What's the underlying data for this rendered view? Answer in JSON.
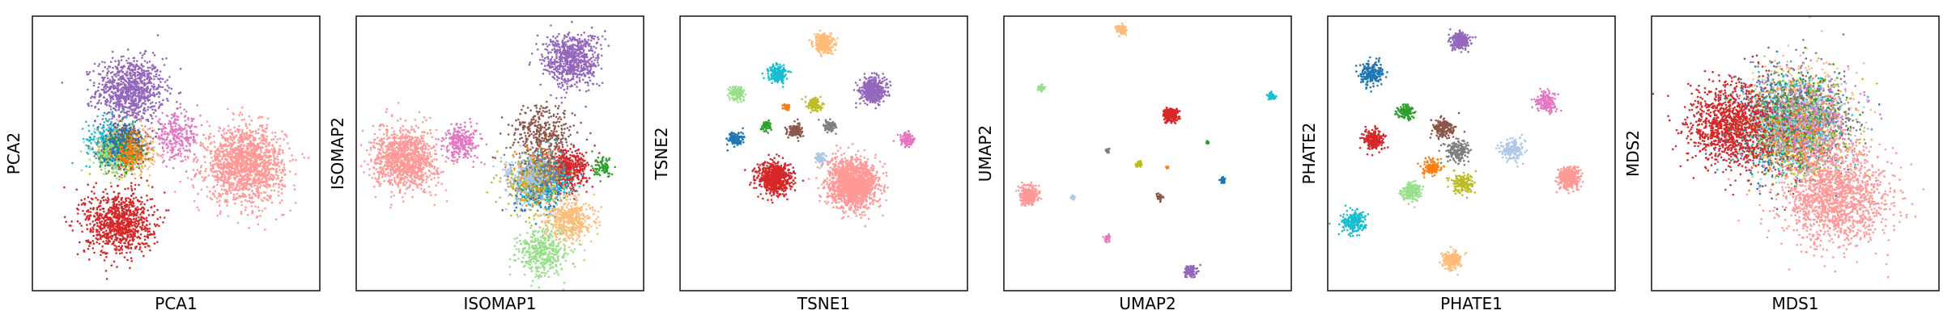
{
  "palette": {
    "blue": "#1f77b4",
    "orange": "#ff7f0e",
    "green": "#2ca02c",
    "red": "#d62728",
    "purple": "#9467bd",
    "brown": "#8c564b",
    "pink": "#e377c2",
    "gray": "#7f7f7f",
    "olive": "#bcbd22",
    "cyan": "#17becf",
    "lightblue": "#aec7e8",
    "lightorange": "#ffbb78",
    "lightgreen": "#98df8a",
    "salmon": "#ff9896"
  },
  "chart_data": [
    {
      "type": "scatter",
      "xlabel": "PCA1",
      "ylabel": "PCA2",
      "ticks": "none",
      "clusters": [
        {
          "color": "purple",
          "x": 0.34,
          "y": 0.73,
          "spread": 0.13,
          "count": 900
        },
        {
          "color": "lightblue",
          "x": 0.32,
          "y": 0.53,
          "spread": 0.1,
          "count": 260
        },
        {
          "color": "cyan",
          "x": 0.27,
          "y": 0.55,
          "spread": 0.09,
          "count": 220
        },
        {
          "color": "olive",
          "x": 0.32,
          "y": 0.5,
          "spread": 0.09,
          "count": 220
        },
        {
          "color": "lightorange",
          "x": 0.35,
          "y": 0.52,
          "spread": 0.09,
          "count": 220
        },
        {
          "color": "gray",
          "x": 0.3,
          "y": 0.52,
          "spread": 0.08,
          "count": 180
        },
        {
          "color": "brown",
          "x": 0.33,
          "y": 0.54,
          "spread": 0.08,
          "count": 180
        },
        {
          "color": "green",
          "x": 0.31,
          "y": 0.51,
          "spread": 0.08,
          "count": 150
        },
        {
          "color": "lightgreen",
          "x": 0.28,
          "y": 0.5,
          "spread": 0.08,
          "count": 150
        },
        {
          "color": "blue",
          "x": 0.3,
          "y": 0.53,
          "spread": 0.08,
          "count": 150
        },
        {
          "color": "orange",
          "x": 0.34,
          "y": 0.5,
          "spread": 0.07,
          "count": 120
        },
        {
          "color": "pink",
          "x": 0.5,
          "y": 0.56,
          "spread": 0.09,
          "count": 280
        },
        {
          "color": "salmon",
          "x": 0.74,
          "y": 0.46,
          "spread": 0.15,
          "count": 1500
        },
        {
          "color": "red",
          "x": 0.3,
          "y": 0.25,
          "spread": 0.13,
          "count": 900
        }
      ]
    },
    {
      "type": "scatter",
      "xlabel": "ISOMAP1",
      "ylabel": "ISOMAP2",
      "ticks": "none",
      "clusters": [
        {
          "color": "purple",
          "x": 0.75,
          "y": 0.84,
          "spread": 0.11,
          "count": 700
        },
        {
          "color": "salmon",
          "x": 0.17,
          "y": 0.48,
          "spread": 0.12,
          "count": 1100
        },
        {
          "color": "pink",
          "x": 0.37,
          "y": 0.54,
          "spread": 0.07,
          "count": 250
        },
        {
          "color": "brown",
          "x": 0.65,
          "y": 0.57,
          "spread": 0.12,
          "count": 350
        },
        {
          "color": "red",
          "x": 0.73,
          "y": 0.44,
          "spread": 0.08,
          "count": 500
        },
        {
          "color": "green",
          "x": 0.86,
          "y": 0.45,
          "spread": 0.04,
          "count": 80
        },
        {
          "color": "blue",
          "x": 0.64,
          "y": 0.38,
          "spread": 0.1,
          "count": 280
        },
        {
          "color": "cyan",
          "x": 0.66,
          "y": 0.4,
          "spread": 0.1,
          "count": 220
        },
        {
          "color": "orange",
          "x": 0.62,
          "y": 0.42,
          "spread": 0.1,
          "count": 200
        },
        {
          "color": "olive",
          "x": 0.61,
          "y": 0.39,
          "spread": 0.11,
          "count": 200
        },
        {
          "color": "gray",
          "x": 0.65,
          "y": 0.43,
          "spread": 0.1,
          "count": 200
        },
        {
          "color": "lightblue",
          "x": 0.6,
          "y": 0.41,
          "spread": 0.11,
          "count": 200
        },
        {
          "color": "lightorange",
          "x": 0.74,
          "y": 0.26,
          "spread": 0.09,
          "count": 450
        },
        {
          "color": "lightgreen",
          "x": 0.65,
          "y": 0.14,
          "spread": 0.1,
          "count": 400
        }
      ]
    },
    {
      "type": "scatter",
      "xlabel": "TSNE1",
      "ylabel": "TSNE2",
      "ticks": "none",
      "clusters": [
        {
          "color": "lightorange",
          "x": 0.5,
          "y": 0.9,
          "spread": 0.038,
          "count": 300
        },
        {
          "color": "cyan",
          "x": 0.34,
          "y": 0.79,
          "spread": 0.034,
          "count": 200
        },
        {
          "color": "purple",
          "x": 0.67,
          "y": 0.73,
          "spread": 0.05,
          "count": 450
        },
        {
          "color": "lightgreen",
          "x": 0.2,
          "y": 0.72,
          "spread": 0.028,
          "count": 150
        },
        {
          "color": "orange",
          "x": 0.37,
          "y": 0.67,
          "spread": 0.012,
          "count": 40
        },
        {
          "color": "olive",
          "x": 0.47,
          "y": 0.68,
          "spread": 0.028,
          "count": 120
        },
        {
          "color": "green",
          "x": 0.3,
          "y": 0.6,
          "spread": 0.018,
          "count": 60
        },
        {
          "color": "brown",
          "x": 0.4,
          "y": 0.58,
          "spread": 0.03,
          "count": 130
        },
        {
          "color": "gray",
          "x": 0.52,
          "y": 0.6,
          "spread": 0.024,
          "count": 90
        },
        {
          "color": "blue",
          "x": 0.19,
          "y": 0.55,
          "spread": 0.03,
          "count": 130
        },
        {
          "color": "pink",
          "x": 0.79,
          "y": 0.55,
          "spread": 0.028,
          "count": 130
        },
        {
          "color": "lightblue",
          "x": 0.49,
          "y": 0.48,
          "spread": 0.022,
          "count": 80
        },
        {
          "color": "red",
          "x": 0.33,
          "y": 0.41,
          "spread": 0.065,
          "count": 700
        },
        {
          "color": "salmon",
          "x": 0.6,
          "y": 0.39,
          "spread": 0.095,
          "count": 1500
        }
      ]
    },
    {
      "type": "scatter",
      "xlabel": "UMAP2",
      "ylabel": "UMAP2",
      "ticks": "none",
      "clusters": [
        {
          "color": "lightorange",
          "x": 0.41,
          "y": 0.95,
          "spread": 0.02,
          "count": 80
        },
        {
          "color": "lightgreen",
          "x": 0.13,
          "y": 0.74,
          "spread": 0.012,
          "count": 40
        },
        {
          "color": "cyan",
          "x": 0.93,
          "y": 0.71,
          "spread": 0.015,
          "count": 60
        },
        {
          "color": "red",
          "x": 0.58,
          "y": 0.64,
          "spread": 0.03,
          "count": 200
        },
        {
          "color": "gray",
          "x": 0.36,
          "y": 0.51,
          "spread": 0.008,
          "count": 25
        },
        {
          "color": "green",
          "x": 0.71,
          "y": 0.54,
          "spread": 0.007,
          "count": 20
        },
        {
          "color": "olive",
          "x": 0.47,
          "y": 0.46,
          "spread": 0.012,
          "count": 40
        },
        {
          "color": "orange",
          "x": 0.57,
          "y": 0.45,
          "spread": 0.006,
          "count": 15
        },
        {
          "color": "blue",
          "x": 0.76,
          "y": 0.4,
          "spread": 0.011,
          "count": 35
        },
        {
          "color": "salmon",
          "x": 0.09,
          "y": 0.35,
          "spread": 0.035,
          "count": 300
        },
        {
          "color": "lightblue",
          "x": 0.24,
          "y": 0.34,
          "spread": 0.01,
          "count": 30
        },
        {
          "color": "brown",
          "x": 0.54,
          "y": 0.34,
          "spread": 0.012,
          "count": 40
        },
        {
          "color": "pink",
          "x": 0.36,
          "y": 0.19,
          "spread": 0.012,
          "count": 40
        },
        {
          "color": "purple",
          "x": 0.65,
          "y": 0.07,
          "spread": 0.022,
          "count": 120
        }
      ]
    },
    {
      "type": "scatter",
      "xlabel": "PHATE1",
      "ylabel": "PHATE2",
      "ticks": "none",
      "clusters": [
        {
          "color": "purple",
          "x": 0.46,
          "y": 0.91,
          "spread": 0.035,
          "count": 220
        },
        {
          "color": "blue",
          "x": 0.15,
          "y": 0.79,
          "spread": 0.05,
          "count": 220
        },
        {
          "color": "pink",
          "x": 0.76,
          "y": 0.69,
          "spread": 0.04,
          "count": 180
        },
        {
          "color": "green",
          "x": 0.27,
          "y": 0.65,
          "spread": 0.03,
          "count": 120
        },
        {
          "color": "brown",
          "x": 0.4,
          "y": 0.59,
          "spread": 0.04,
          "count": 180
        },
        {
          "color": "red",
          "x": 0.16,
          "y": 0.55,
          "spread": 0.04,
          "count": 220
        },
        {
          "color": "gray",
          "x": 0.45,
          "y": 0.51,
          "spread": 0.045,
          "count": 180
        },
        {
          "color": "lightblue",
          "x": 0.64,
          "y": 0.51,
          "spread": 0.045,
          "count": 160
        },
        {
          "color": "orange",
          "x": 0.36,
          "y": 0.45,
          "spread": 0.035,
          "count": 130
        },
        {
          "color": "olive",
          "x": 0.47,
          "y": 0.39,
          "spread": 0.04,
          "count": 170
        },
        {
          "color": "salmon",
          "x": 0.84,
          "y": 0.41,
          "spread": 0.045,
          "count": 350
        },
        {
          "color": "lightgreen",
          "x": 0.29,
          "y": 0.36,
          "spread": 0.035,
          "count": 180
        },
        {
          "color": "cyan",
          "x": 0.09,
          "y": 0.25,
          "spread": 0.045,
          "count": 220
        },
        {
          "color": "lightorange",
          "x": 0.43,
          "y": 0.11,
          "spread": 0.035,
          "count": 220
        }
      ]
    },
    {
      "type": "scatter",
      "xlabel": "MDS1",
      "ylabel": "MDS2",
      "ticks": "none",
      "clusters": [
        {
          "color": "purple",
          "x": 0.48,
          "y": 0.62,
          "spread": 0.2,
          "count": 550
        },
        {
          "color": "lightorange",
          "x": 0.5,
          "y": 0.66,
          "spread": 0.2,
          "count": 450
        },
        {
          "color": "blue",
          "x": 0.46,
          "y": 0.6,
          "spread": 0.2,
          "count": 350
        },
        {
          "color": "cyan",
          "x": 0.5,
          "y": 0.6,
          "spread": 0.2,
          "count": 350
        },
        {
          "color": "olive",
          "x": 0.53,
          "y": 0.58,
          "spread": 0.2,
          "count": 350
        },
        {
          "color": "gray",
          "x": 0.49,
          "y": 0.63,
          "spread": 0.2,
          "count": 300
        },
        {
          "color": "brown",
          "x": 0.45,
          "y": 0.56,
          "spread": 0.2,
          "count": 300
        },
        {
          "color": "green",
          "x": 0.52,
          "y": 0.64,
          "spread": 0.18,
          "count": 250
        },
        {
          "color": "lightgreen",
          "x": 0.47,
          "y": 0.58,
          "spread": 0.19,
          "count": 250
        },
        {
          "color": "lightblue",
          "x": 0.54,
          "y": 0.62,
          "spread": 0.18,
          "count": 250
        },
        {
          "color": "orange",
          "x": 0.5,
          "y": 0.57,
          "spread": 0.18,
          "count": 200
        },
        {
          "color": "pink",
          "x": 0.56,
          "y": 0.6,
          "spread": 0.18,
          "count": 250
        },
        {
          "color": "red",
          "x": 0.27,
          "y": 0.6,
          "spread": 0.16,
          "count": 1000
        },
        {
          "color": "salmon",
          "x": 0.64,
          "y": 0.34,
          "spread": 0.2,
          "count": 1500
        }
      ]
    }
  ]
}
